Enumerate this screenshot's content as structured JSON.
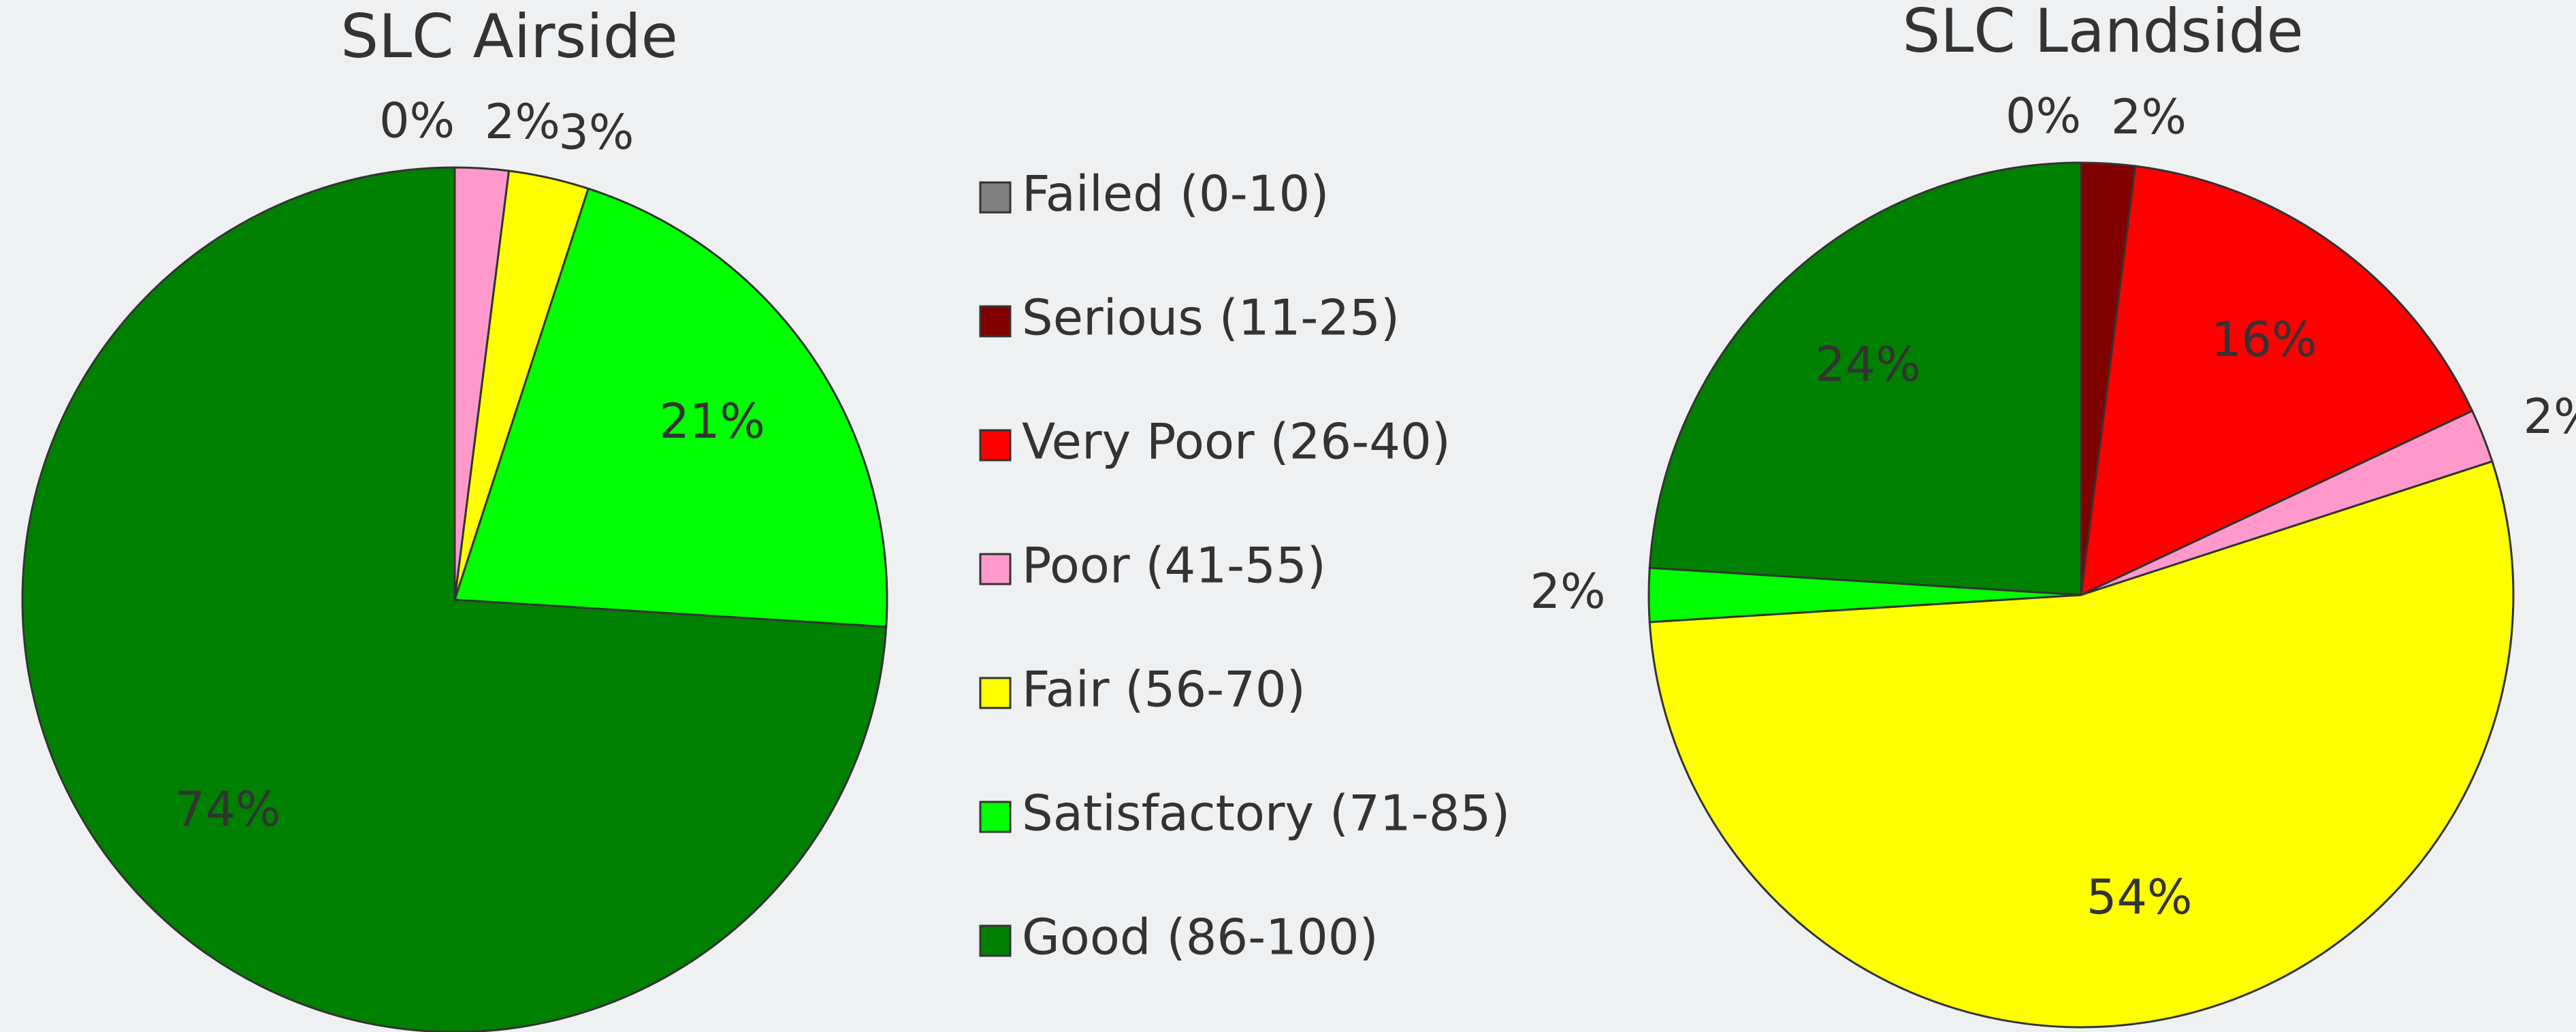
{
  "chart_data": [
    {
      "type": "pie",
      "title": "SLC Airside",
      "categories": [
        "Failed (0-10)",
        "Serious (11-25)",
        "Very Poor (26-40)",
        "Poor (41-55)",
        "Fair (56-70)",
        "Satisfactory (71-85)",
        "Good (86-100)"
      ],
      "colors": [
        "#808080",
        "#800000",
        "#ff0000",
        "#ff99cc",
        "#ffff00",
        "#00ff00",
        "#008000"
      ],
      "values": [
        0,
        0,
        0,
        2,
        3,
        21,
        74
      ],
      "value_labels": [
        "0%",
        null,
        null,
        "2%",
        "3%",
        "21%",
        "74%"
      ],
      "legend": "center"
    },
    {
      "type": "pie",
      "title": "SLC Landside",
      "categories": [
        "Failed (0-10)",
        "Serious (11-25)",
        "Very Poor (26-40)",
        "Poor (41-55)",
        "Fair (56-70)",
        "Satisfactory (71-85)",
        "Good (86-100)"
      ],
      "colors": [
        "#808080",
        "#800000",
        "#ff0000",
        "#ff99cc",
        "#ffff00",
        "#00ff00",
        "#008000"
      ],
      "values": [
        0,
        2,
        16,
        2,
        54,
        2,
        24
      ],
      "value_labels": [
        "0%",
        "2%",
        "16%",
        "2%",
        "54%",
        "2%",
        "24%"
      ]
    }
  ]
}
